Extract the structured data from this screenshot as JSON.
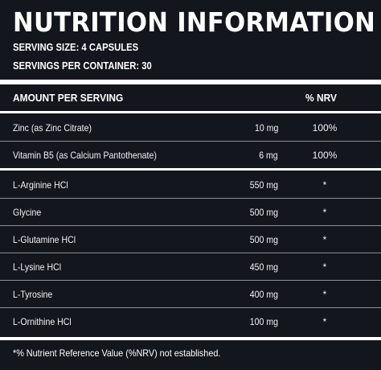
{
  "title": "NUTRITION INFORMATION",
  "serving_size": "SERVING SIZE: 4 CAPSULES",
  "servings_per_container": "SERVINGS PER CONTAINER: 30",
  "header": {
    "amount_per_serving": "AMOUNT PER SERVING",
    "nrv": "% NRV"
  },
  "group1": [
    {
      "name": "Zinc (as Zinc Citrate)",
      "amount": "10 mg",
      "nrv": "100%"
    },
    {
      "name": "Vitamin B5 (as Calcium Pantothenate)",
      "amount": "6 mg",
      "nrv": "100%"
    }
  ],
  "group2": [
    {
      "name": "L-Arginine HCl",
      "amount": "550 mg",
      "nrv": "*"
    },
    {
      "name": "Glycine",
      "amount": "500 mg",
      "nrv": "*"
    },
    {
      "name": "L-Glutamine HCl",
      "amount": "500 mg",
      "nrv": "*"
    },
    {
      "name": "L-Lysine HCl",
      "amount": "450 mg",
      "nrv": "*"
    },
    {
      "name": "L-Tyrosine",
      "amount": "400 mg",
      "nrv": "*"
    },
    {
      "name": "L-Ornithine HCl",
      "amount": "100 mg",
      "nrv": "*"
    }
  ],
  "footnote": "*% Nutrient Reference Value (%NRV) not established.",
  "colors": {
    "background": "#13161d",
    "text": "#ffffff",
    "thin_rule": "#8a8d93"
  }
}
